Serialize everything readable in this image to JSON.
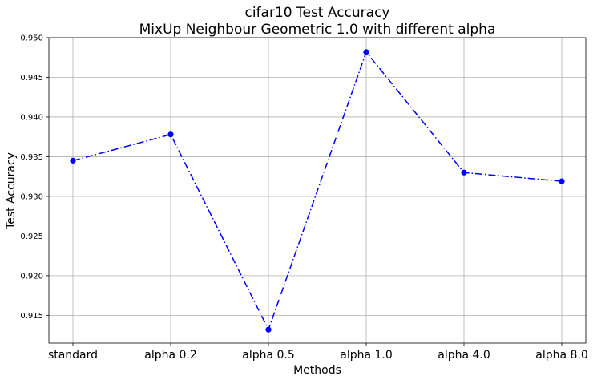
{
  "chart_data": {
    "type": "line",
    "title": "cifar10 Test Accuracy",
    "subtitle": "MixUp Neighbour Geometric 1.0 with different alpha",
    "xlabel": "Methods",
    "ylabel": "Test Accuracy",
    "categories": [
      "standard",
      "alpha 0.2",
      "alpha 0.5",
      "alpha 1.0",
      "alpha 4.0",
      "alpha 8.0"
    ],
    "series": [
      {
        "values": [
          0.9345,
          0.9378,
          0.9132,
          0.9482,
          0.933,
          0.9319
        ],
        "color": "#0000ff",
        "line_style": "dash-dot",
        "marker": "circle"
      }
    ],
    "ylim": [
      0.9115,
      0.95
    ],
    "yticks": [
      "0.915",
      "0.920",
      "0.925",
      "0.930",
      "0.935",
      "0.940",
      "0.945",
      "0.950"
    ],
    "grid": true
  }
}
